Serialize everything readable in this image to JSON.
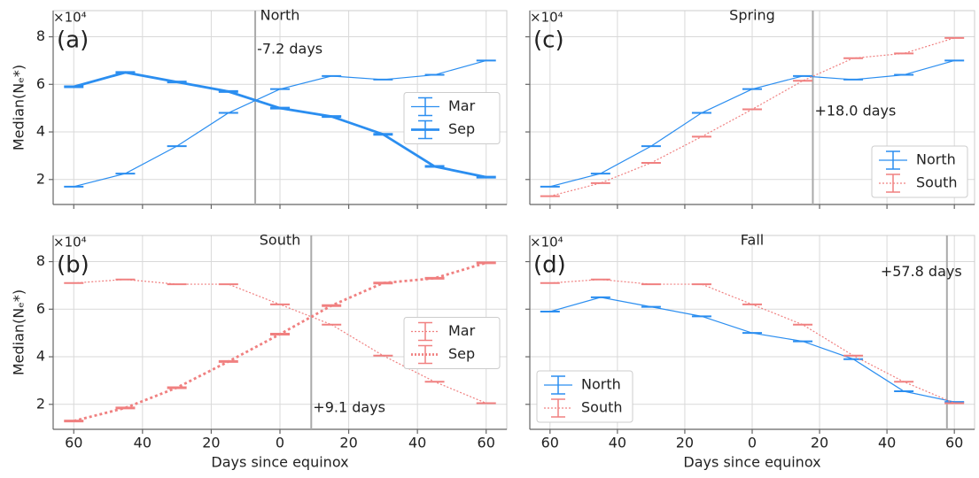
{
  "chart_data": [
    {
      "type": "line",
      "panel_label": "(a)",
      "title": "North",
      "ylabel": "Median(Nₑ*)",
      "y_offset": "×10⁴",
      "x": [
        -60,
        -45,
        -30,
        -15,
        0,
        15,
        30,
        45,
        60
      ],
      "series": [
        {
          "name": "Mar",
          "color": "#2b8ef0",
          "linestyle": "solid",
          "linewidth": 1.2,
          "values": [
            1.7,
            2.25,
            3.4,
            4.8,
            5.8,
            6.35,
            6.2,
            6.4,
            7.0
          ]
        },
        {
          "name": "Sep",
          "color": "#2b8ef0",
          "linestyle": "solid",
          "linewidth": 2.8,
          "values": [
            5.9,
            6.5,
            6.1,
            5.7,
            5.0,
            4.65,
            3.9,
            2.55,
            2.1
          ]
        }
      ],
      "vline": {
        "x": -7.2,
        "label": "-7.2 days"
      },
      "xlim": [
        -66,
        66
      ],
      "ylim": [
        0.95,
        9.1
      ],
      "xticks": [
        {
          "value": -60,
          "label": "60"
        },
        {
          "value": -40,
          "label": "40"
        },
        {
          "value": -20,
          "label": "20"
        },
        0,
        20,
        40,
        60
      ],
      "yticks": [
        2,
        4,
        6,
        8
      ],
      "xtick_labels": false,
      "ytick_labels": true,
      "grid": true,
      "legend": "center right"
    },
    {
      "type": "line",
      "panel_label": "(b)",
      "title": "South",
      "ylabel": "Median(Nₑ*)",
      "xlabel": "Days since equinox",
      "y_offset": "×10⁴",
      "x": [
        -60,
        -45,
        -30,
        -15,
        0,
        15,
        30,
        45,
        60
      ],
      "series": [
        {
          "name": "Mar",
          "color": "#f08080",
          "linestyle": "dotted",
          "linewidth": 1.2,
          "values": [
            7.1,
            7.25,
            7.05,
            7.05,
            6.2,
            5.35,
            4.05,
            2.95,
            2.05
          ]
        },
        {
          "name": "Sep",
          "color": "#f08080",
          "linestyle": "dotted",
          "linewidth": 2.8,
          "values": [
            1.3,
            1.85,
            2.7,
            3.8,
            4.95,
            6.15,
            7.1,
            7.3,
            7.95
          ]
        }
      ],
      "vline": {
        "x": 9.1,
        "label": "+9.1 days"
      },
      "xlim": [
        -66,
        66
      ],
      "ylim": [
        0.95,
        9.1
      ],
      "xticks": [
        {
          "value": -60,
          "label": "60"
        },
        {
          "value": -40,
          "label": "40"
        },
        {
          "value": -20,
          "label": "20"
        },
        0,
        20,
        40,
        60
      ],
      "yticks": [
        2,
        4,
        6,
        8
      ],
      "xtick_labels": true,
      "ytick_labels": true,
      "grid": true,
      "legend": "center right"
    },
    {
      "type": "line",
      "panel_label": "(c)",
      "title": "Spring",
      "y_offset": "×10⁴",
      "x": [
        -60,
        -45,
        -30,
        -15,
        0,
        15,
        30,
        45,
        60
      ],
      "series": [
        {
          "name": "North",
          "color": "#2b8ef0",
          "linestyle": "solid",
          "linewidth": 1.2,
          "values": [
            1.7,
            2.25,
            3.4,
            4.8,
            5.8,
            6.35,
            6.2,
            6.4,
            7.0
          ]
        },
        {
          "name": "South",
          "color": "#f08080",
          "linestyle": "dotted",
          "linewidth": 1.2,
          "values": [
            1.3,
            1.85,
            2.7,
            3.8,
            4.95,
            6.15,
            7.1,
            7.3,
            7.95
          ]
        }
      ],
      "vline": {
        "x": 18.0,
        "label": "+18.0 days"
      },
      "xlim": [
        -66,
        66
      ],
      "ylim": [
        0.95,
        9.1
      ],
      "xticks": [
        {
          "value": -60,
          "label": "60"
        },
        {
          "value": -40,
          "label": "40"
        },
        {
          "value": -20,
          "label": "20"
        },
        0,
        20,
        40,
        60
      ],
      "yticks": [
        2,
        4,
        6,
        8
      ],
      "xtick_labels": false,
      "ytick_labels": false,
      "grid": true,
      "legend": "lower right"
    },
    {
      "type": "line",
      "panel_label": "(d)",
      "title": "Fall",
      "xlabel": "Days since equinox",
      "y_offset": "×10⁴",
      "x": [
        -60,
        -45,
        -30,
        -15,
        0,
        15,
        30,
        45,
        60
      ],
      "series": [
        {
          "name": "North",
          "color": "#2b8ef0",
          "linestyle": "solid",
          "linewidth": 1.2,
          "values": [
            5.9,
            6.5,
            6.1,
            5.7,
            5.0,
            4.65,
            3.9,
            2.55,
            2.1
          ]
        },
        {
          "name": "South",
          "color": "#f08080",
          "linestyle": "dotted",
          "linewidth": 1.2,
          "values": [
            7.1,
            7.25,
            7.05,
            7.05,
            6.2,
            5.35,
            4.05,
            2.95,
            2.05
          ]
        }
      ],
      "vline": {
        "x": 57.8,
        "label": "+57.8 days"
      },
      "xlim": [
        -66,
        66
      ],
      "ylim": [
        0.95,
        9.1
      ],
      "xticks": [
        {
          "value": -60,
          "label": "60"
        },
        {
          "value": -40,
          "label": "40"
        },
        {
          "value": -20,
          "label": "20"
        },
        0,
        20,
        40,
        60
      ],
      "yticks": [
        2,
        4,
        6,
        8
      ],
      "xtick_labels": true,
      "ytick_labels": false,
      "grid": true,
      "legend": "lower left"
    }
  ]
}
